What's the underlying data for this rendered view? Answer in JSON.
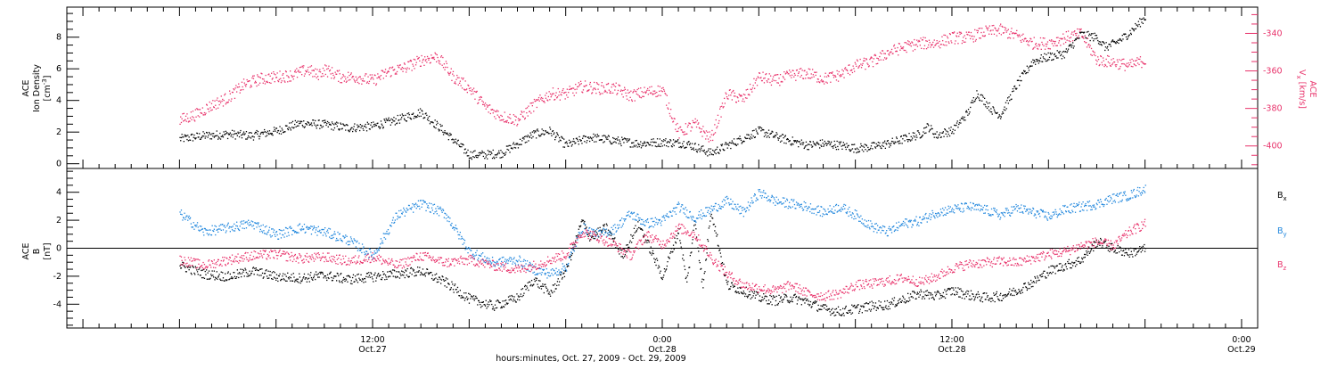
{
  "colors": {
    "density": "#000000",
    "vx": "#e8316a",
    "bx": "#000000",
    "by": "#1f86dd",
    "bz": "#e8316a"
  },
  "chart_data": [
    {
      "type": "scatter",
      "panel": "top",
      "left_axis": {
        "label_top": "ACE",
        "label_main": "Ion Density",
        "units": "[cm",
        "units_exp": "-3",
        "units_close": "]",
        "ylim": [
          -0.3,
          9.9
        ],
        "ticks": [
          0,
          2,
          4,
          6,
          8
        ]
      },
      "right_axis": {
        "label_top": "ACE",
        "label_main": "V",
        "label_sub": "x",
        "units": "[km/s]",
        "ylim": [
          -412,
          -326
        ],
        "ticks": [
          -340,
          -360,
          -380,
          -400
        ]
      },
      "series": [
        {
          "key": "density",
          "axis": "left",
          "x_hours": [
            0,
            3,
            6,
            9,
            12,
            15,
            18,
            21,
            24,
            27,
            30,
            33,
            36,
            38,
            40,
            42,
            44,
            46,
            48,
            51,
            54,
            57,
            60,
            63,
            66,
            69,
            72,
            75,
            78,
            80,
            82,
            84,
            86,
            88,
            90,
            92,
            93,
            94,
            95,
            96,
            97,
            98,
            99,
            100,
            101,
            102,
            104,
            106,
            108,
            110,
            112,
            114,
            115,
            116,
            117,
            118,
            119,
            120
          ],
          "values": [
            1.6,
            1.8,
            1.9,
            1.8,
            2.1,
            2.6,
            2.5,
            2.3,
            2.4,
            2.8,
            3.3,
            2.0,
            0.6,
            0.6,
            0.7,
            1.3,
            1.9,
            2.1,
            1.2,
            1.7,
            1.5,
            1.3,
            1.4,
            1.3,
            0.7,
            1.4,
            2.1,
            1.6,
            1.2,
            1.3,
            1.2,
            1.0,
            1.1,
            1.3,
            1.6,
            1.9,
            2.4,
            1.8,
            2.0,
            2.1,
            2.7,
            3.3,
            4.5,
            4.0,
            3.4,
            3.1,
            5.0,
            6.5,
            6.8,
            7.0,
            8.2,
            8.0,
            7.4,
            7.6,
            7.9,
            8.3,
            8.8,
            9.3
          ],
          "spread": 0.28
        },
        {
          "key": "vx",
          "axis": "right",
          "x_hours": [
            0,
            2,
            4,
            6,
            8,
            10,
            12,
            14,
            16,
            17,
            18,
            20,
            22,
            24,
            26,
            28,
            30,
            32,
            34,
            36,
            38,
            40,
            42,
            44,
            46,
            48,
            50,
            52,
            54,
            56,
            58,
            60,
            62,
            64,
            66,
            68,
            70,
            72,
            74,
            76,
            78,
            80,
            82,
            84,
            86,
            88,
            90,
            92,
            94,
            96,
            98,
            100,
            102,
            104,
            106,
            108,
            110,
            112,
            114,
            116,
            118,
            120
          ],
          "values": [
            -386,
            -383,
            -378,
            -374,
            -367,
            -364,
            -363,
            -362,
            -359,
            -362,
            -359,
            -363,
            -363,
            -365,
            -360,
            -358,
            -354,
            -352,
            -363,
            -369,
            -379,
            -384,
            -386,
            -378,
            -372,
            -372,
            -368,
            -369,
            -369,
            -373,
            -371,
            -370,
            -393,
            -388,
            -396,
            -372,
            -375,
            -363,
            -365,
            -362,
            -361,
            -364,
            -362,
            -357,
            -355,
            -350,
            -347,
            -345,
            -345,
            -342,
            -342,
            -339,
            -338,
            -341,
            -345,
            -345,
            -342,
            -340,
            -354,
            -355,
            -357,
            -354
          ],
          "spread": 3.2
        }
      ]
    },
    {
      "type": "scatter",
      "panel": "bottom",
      "left_axis": {
        "label_top": "ACE",
        "label_main": "B",
        "units": "[nT]",
        "ylim": [
          -5.7,
          5.7
        ],
        "ticks": [
          4,
          2,
          0,
          -2,
          -4
        ]
      },
      "zero_line": true,
      "series": [
        {
          "key": "bx",
          "name": "B",
          "sub": "x",
          "x_hours": [
            0,
            3,
            6,
            9,
            12,
            15,
            18,
            21,
            24,
            27,
            30,
            33,
            36,
            39,
            42,
            44,
            46,
            48,
            50,
            51,
            53,
            55,
            57,
            60,
            62,
            63,
            64,
            65,
            66,
            68,
            70,
            72,
            74,
            76,
            78,
            80,
            82,
            84,
            86,
            88,
            90,
            92,
            94,
            96,
            98,
            100,
            102,
            104,
            106,
            108,
            110,
            112,
            114,
            116,
            118,
            120
          ],
          "values": [
            -1.2,
            -1.8,
            -2.0,
            -1.6,
            -2.0,
            -2.1,
            -1.9,
            -2.2,
            -2.0,
            -1.8,
            -1.6,
            -2.4,
            -3.6,
            -4.1,
            -3.5,
            -2.2,
            -3.2,
            -1.5,
            2.0,
            0.8,
            1.5,
            -0.5,
            1.8,
            -2.0,
            1.3,
            -2.5,
            2.0,
            -2.8,
            2.8,
            -2.6,
            -3.0,
            -3.5,
            -3.7,
            -3.5,
            -3.8,
            -4.3,
            -4.5,
            -4.3,
            -4.1,
            -4.0,
            -3.6,
            -3.2,
            -3.4,
            -3.0,
            -3.3,
            -3.5,
            -3.4,
            -3.0,
            -2.4,
            -1.6,
            -1.2,
            -0.8,
            0.5,
            0.0,
            -0.3,
            0.0
          ],
          "spread": 0.35
        },
        {
          "key": "by",
          "name": "B",
          "sub": "y",
          "x_hours": [
            0,
            3,
            6,
            9,
            12,
            15,
            18,
            21,
            24,
            27,
            30,
            33,
            36,
            39,
            42,
            44,
            46,
            48,
            50,
            52,
            54,
            56,
            58,
            60,
            62,
            64,
            66,
            68,
            70,
            72,
            74,
            76,
            78,
            80,
            82,
            84,
            86,
            88,
            90,
            92,
            94,
            96,
            98,
            100,
            102,
            104,
            106,
            108,
            110,
            112,
            114,
            116,
            118,
            120
          ],
          "values": [
            2.5,
            1.2,
            1.5,
            1.8,
            1.0,
            1.5,
            1.2,
            0.6,
            -0.5,
            2.4,
            3.2,
            2.5,
            -0.2,
            -1.0,
            -0.8,
            -1.5,
            -1.8,
            -1.3,
            1.5,
            1.0,
            1.4,
            2.5,
            1.8,
            2.0,
            3.0,
            2.2,
            2.8,
            3.4,
            2.6,
            4.0,
            3.4,
            3.2,
            3.0,
            2.6,
            3.0,
            2.4,
            1.6,
            1.2,
            1.8,
            2.0,
            2.6,
            2.8,
            3.0,
            2.8,
            2.4,
            2.9,
            2.6,
            2.3,
            2.8,
            3.0,
            3.2,
            3.6,
            3.8,
            4.3
          ],
          "spread": 0.35
        },
        {
          "key": "bz",
          "name": "B",
          "sub": "z",
          "x_hours": [
            0,
            3,
            6,
            9,
            12,
            15,
            18,
            21,
            24,
            27,
            30,
            33,
            36,
            39,
            42,
            44,
            46,
            48,
            50,
            52,
            54,
            56,
            58,
            60,
            62,
            64,
            66,
            68,
            70,
            72,
            74,
            76,
            78,
            80,
            82,
            84,
            86,
            88,
            90,
            92,
            94,
            96,
            98,
            100,
            102,
            104,
            106,
            108,
            110,
            112,
            114,
            116,
            118,
            120
          ],
          "values": [
            -0.8,
            -1.2,
            -0.8,
            -0.5,
            -0.4,
            -0.7,
            -0.6,
            -0.9,
            -0.6,
            -1.2,
            -0.5,
            -1.0,
            -0.8,
            -1.2,
            -1.5,
            -1.2,
            -0.8,
            -0.4,
            1.2,
            0.8,
            0.3,
            -0.5,
            1.0,
            0.3,
            1.5,
            1.0,
            -0.6,
            -1.8,
            -2.6,
            -2.8,
            -3.0,
            -2.6,
            -3.2,
            -3.4,
            -3.2,
            -2.6,
            -2.5,
            -2.3,
            -2.1,
            -2.4,
            -2.0,
            -1.4,
            -1.1,
            -1.0,
            -0.9,
            -1.0,
            -0.7,
            -0.4,
            -0.2,
            0.2,
            0.5,
            0.2,
            1.2,
            1.8
          ],
          "spread": 0.35
        }
      ]
    }
  ],
  "x_axis": {
    "range_hours": [
      -14,
      134
    ],
    "data_end_hours": 120,
    "ticks": [
      {
        "hour": 24,
        "time": "12:00",
        "date": "Oct.27"
      },
      {
        "hour": 60,
        "time": "0:00",
        "date": "Oct.28"
      },
      {
        "hour": 96,
        "time": "12:00",
        "date": "Oct.28"
      },
      {
        "hour": 132,
        "time": "0:00",
        "date": "Oct.29"
      }
    ],
    "label": "hours:minutes, Oct. 27, 2009 - Oct. 29, 2009"
  }
}
